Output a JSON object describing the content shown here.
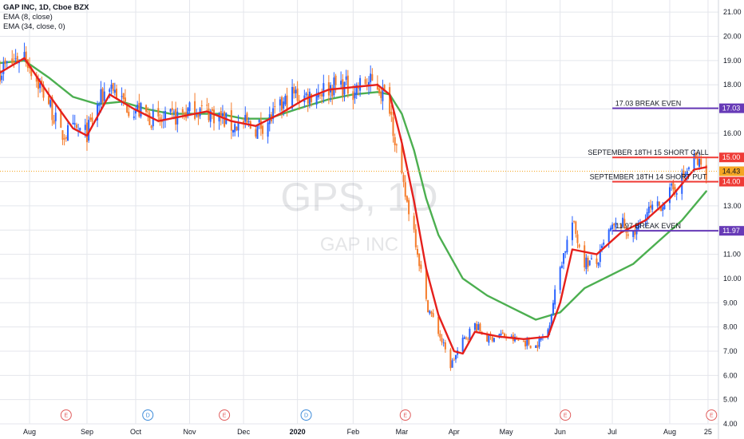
{
  "legend": {
    "symbol": "GAP INC, 1D, Cboe BZX",
    "ema_fast": "EMA (8, close)",
    "ema_slow": "EMA (34, close, 0)"
  },
  "watermark": {
    "ticker": "GPS, 1D",
    "name": "GAP INC"
  },
  "colors": {
    "up": "#2962ff",
    "down": "#f57c2b",
    "ema_fast": "#e5201c",
    "ema_slow": "#4caf50",
    "price_line": "#f5a623",
    "red_level": "#ef3b36",
    "purple_level": "#673ab7"
  },
  "chart_data": {
    "type": "candlestick",
    "title": "GAP INC, 1D, Cboe BZX",
    "ylim": [
      4.0,
      21.5
    ],
    "yticks": [
      "21.00",
      "20.00",
      "19.00",
      "18.00",
      "17.00",
      "16.00",
      "15.00",
      "14.00",
      "13.00",
      "12.00",
      "11.00",
      "10.00",
      "9.00",
      "8.00",
      "7.00",
      "6.00",
      "5.00",
      "4.00"
    ],
    "xticks": [
      {
        "label": "Aug",
        "x": "2019-08-01"
      },
      {
        "label": "Sep",
        "x": "2019-09-03"
      },
      {
        "label": "Oct",
        "x": "2019-10-01"
      },
      {
        "label": "Nov",
        "x": "2019-11-01"
      },
      {
        "label": "Dec",
        "x": "2019-12-02"
      },
      {
        "label": "2020",
        "x": "2020-01-02"
      },
      {
        "label": "Feb",
        "x": "2020-02-03"
      },
      {
        "label": "Mar",
        "x": "2020-03-02"
      },
      {
        "label": "Apr",
        "x": "2020-04-01"
      },
      {
        "label": "May",
        "x": "2020-05-01"
      },
      {
        "label": "Jun",
        "x": "2020-06-01"
      },
      {
        "label": "Jul",
        "x": "2020-07-01"
      },
      {
        "label": "Aug",
        "x": "2020-08-03"
      },
      {
        "label": "25",
        "x": "2020-08-25"
      }
    ],
    "close_path": [
      [
        "2019-07-15",
        18.6
      ],
      [
        "2019-07-22",
        18.9
      ],
      [
        "2019-07-29",
        19.3
      ],
      [
        "2019-08-05",
        18.2
      ],
      [
        "2019-08-12",
        17.3
      ],
      [
        "2019-08-19",
        15.9
      ],
      [
        "2019-08-26",
        16.1
      ],
      [
        "2019-09-03",
        16.0
      ],
      [
        "2019-09-09",
        17.1
      ],
      [
        "2019-09-16",
        18.1
      ],
      [
        "2019-09-23",
        17.3
      ],
      [
        "2019-09-30",
        17.0
      ],
      [
        "2019-10-07",
        16.8
      ],
      [
        "2019-10-14",
        16.4
      ],
      [
        "2019-10-21",
        16.6
      ],
      [
        "2019-10-28",
        16.8
      ],
      [
        "2019-11-04",
        17.0
      ],
      [
        "2019-11-11",
        16.9
      ],
      [
        "2019-11-18",
        16.7
      ],
      [
        "2019-11-25",
        16.3
      ],
      [
        "2019-12-02",
        16.4
      ],
      [
        "2019-12-09",
        16.2
      ],
      [
        "2019-12-16",
        16.5
      ],
      [
        "2019-12-23",
        17.0
      ],
      [
        "2019-12-30",
        17.6
      ],
      [
        "2020-01-06",
        17.5
      ],
      [
        "2020-01-13",
        17.7
      ],
      [
        "2020-01-20",
        17.9
      ],
      [
        "2020-01-27",
        18.0
      ],
      [
        "2020-02-03",
        17.8
      ],
      [
        "2020-02-10",
        18.1
      ],
      [
        "2020-02-17",
        18.0
      ],
      [
        "2020-02-24",
        17.2
      ],
      [
        "2020-03-02",
        14.0
      ],
      [
        "2020-03-09",
        12.0
      ],
      [
        "2020-03-16",
        9.0
      ],
      [
        "2020-03-23",
        7.8
      ],
      [
        "2020-03-30",
        6.4
      ],
      [
        "2020-04-06",
        7.4
      ],
      [
        "2020-04-13",
        8.1
      ],
      [
        "2020-04-20",
        7.5
      ],
      [
        "2020-04-27",
        7.7
      ],
      [
        "2020-05-04",
        7.5
      ],
      [
        "2020-05-11",
        7.4
      ],
      [
        "2020-05-18",
        7.2
      ],
      [
        "2020-05-25",
        7.9
      ],
      [
        "2020-06-01",
        10.5
      ],
      [
        "2020-06-08",
        12.3
      ],
      [
        "2020-06-15",
        10.7
      ],
      [
        "2020-06-22",
        10.6
      ],
      [
        "2020-06-29",
        11.9
      ],
      [
        "2020-07-06",
        12.3
      ],
      [
        "2020-07-13",
        11.7
      ],
      [
        "2020-07-20",
        12.7
      ],
      [
        "2020-07-27",
        12.9
      ],
      [
        "2020-08-03",
        13.5
      ],
      [
        "2020-08-10",
        14.1
      ],
      [
        "2020-08-17",
        14.9
      ],
      [
        "2020-08-24",
        14.43
      ]
    ],
    "ema_fast_path": [
      [
        "2019-07-15",
        18.5
      ],
      [
        "2019-07-29",
        19.1
      ],
      [
        "2019-08-12",
        17.6
      ],
      [
        "2019-08-26",
        16.2
      ],
      [
        "2019-09-03",
        15.9
      ],
      [
        "2019-09-16",
        17.6
      ],
      [
        "2019-09-30",
        17.0
      ],
      [
        "2019-10-14",
        16.5
      ],
      [
        "2019-10-28",
        16.7
      ],
      [
        "2019-11-11",
        16.9
      ],
      [
        "2019-11-25",
        16.5
      ],
      [
        "2019-12-09",
        16.3
      ],
      [
        "2019-12-23",
        16.8
      ],
      [
        "2020-01-06",
        17.4
      ],
      [
        "2020-01-20",
        17.8
      ],
      [
        "2020-02-03",
        17.9
      ],
      [
        "2020-02-17",
        18.0
      ],
      [
        "2020-02-24",
        17.6
      ],
      [
        "2020-03-02",
        15.6
      ],
      [
        "2020-03-09",
        13.2
      ],
      [
        "2020-03-16",
        10.4
      ],
      [
        "2020-03-23",
        8.5
      ],
      [
        "2020-04-01",
        7.0
      ],
      [
        "2020-04-06",
        6.9
      ],
      [
        "2020-04-13",
        7.8
      ],
      [
        "2020-04-27",
        7.6
      ],
      [
        "2020-05-11",
        7.5
      ],
      [
        "2020-05-25",
        7.6
      ],
      [
        "2020-06-01",
        9.0
      ],
      [
        "2020-06-08",
        11.2
      ],
      [
        "2020-06-22",
        11.0
      ],
      [
        "2020-07-06",
        11.9
      ],
      [
        "2020-07-20",
        12.4
      ],
      [
        "2020-08-03",
        13.3
      ],
      [
        "2020-08-17",
        14.5
      ],
      [
        "2020-08-24",
        14.6
      ]
    ],
    "ema_slow_path": [
      [
        "2019-07-15",
        18.9
      ],
      [
        "2019-07-29",
        19.0
      ],
      [
        "2019-08-12",
        18.3
      ],
      [
        "2019-08-26",
        17.5
      ],
      [
        "2019-09-09",
        17.2
      ],
      [
        "2019-09-23",
        17.3
      ],
      [
        "2019-10-07",
        17.0
      ],
      [
        "2019-10-21",
        16.8
      ],
      [
        "2019-11-04",
        16.8
      ],
      [
        "2019-11-18",
        16.8
      ],
      [
        "2019-12-02",
        16.6
      ],
      [
        "2019-12-16",
        16.6
      ],
      [
        "2020-01-02",
        17.0
      ],
      [
        "2020-01-20",
        17.4
      ],
      [
        "2020-02-03",
        17.6
      ],
      [
        "2020-02-17",
        17.7
      ],
      [
        "2020-02-24",
        17.6
      ],
      [
        "2020-03-02",
        16.8
      ],
      [
        "2020-03-09",
        15.3
      ],
      [
        "2020-03-16",
        13.3
      ],
      [
        "2020-03-23",
        11.8
      ],
      [
        "2020-04-06",
        10.0
      ],
      [
        "2020-04-20",
        9.3
      ],
      [
        "2020-05-04",
        8.8
      ],
      [
        "2020-05-18",
        8.3
      ],
      [
        "2020-06-01",
        8.6
      ],
      [
        "2020-06-15",
        9.6
      ],
      [
        "2020-06-29",
        10.1
      ],
      [
        "2020-07-13",
        10.6
      ],
      [
        "2020-07-27",
        11.5
      ],
      [
        "2020-08-10",
        12.4
      ],
      [
        "2020-08-24",
        13.6
      ]
    ],
    "series": [
      {
        "name": "EMA (8, close)"
      },
      {
        "name": "EMA (34, close, 0)"
      }
    ],
    "levels": [
      {
        "value": 17.03,
        "label": "17.03 BREAK EVEN",
        "tag": "17.03",
        "color": "#673ab7",
        "from": "2020-07-01"
      },
      {
        "value": 15.0,
        "label": "SEPTEMBER 18TH 15 SHORT CALL",
        "tag": "15.00",
        "color": "#ef3b36",
        "from": "2020-07-01"
      },
      {
        "value": 14.0,
        "label": "SEPTEMBER 18TH 14 SHORT PUT",
        "tag": "14.00",
        "color": "#ef3b36",
        "from": "2020-07-01"
      },
      {
        "value": 11.97,
        "label": "11.97 BREAK EVEN",
        "tag": "11.97",
        "color": "#673ab7",
        "from": "2020-07-01"
      }
    ],
    "last_price": {
      "value": 14.43,
      "tag": "14.43"
    },
    "events": [
      {
        "label": "E",
        "x": "2019-08-22",
        "color": "#e05c5c"
      },
      {
        "label": "D",
        "x": "2019-10-08",
        "color": "#3d8bd9"
      },
      {
        "label": "E",
        "x": "2019-11-21",
        "color": "#e05c5c"
      },
      {
        "label": "D",
        "x": "2020-01-07",
        "color": "#3d8bd9"
      },
      {
        "label": "E",
        "x": "2020-03-04",
        "color": "#e05c5c"
      },
      {
        "label": "E",
        "x": "2020-06-04",
        "color": "#e05c5c"
      },
      {
        "label": "E",
        "x": "2020-08-27",
        "color": "#e05c5c"
      }
    ]
  }
}
